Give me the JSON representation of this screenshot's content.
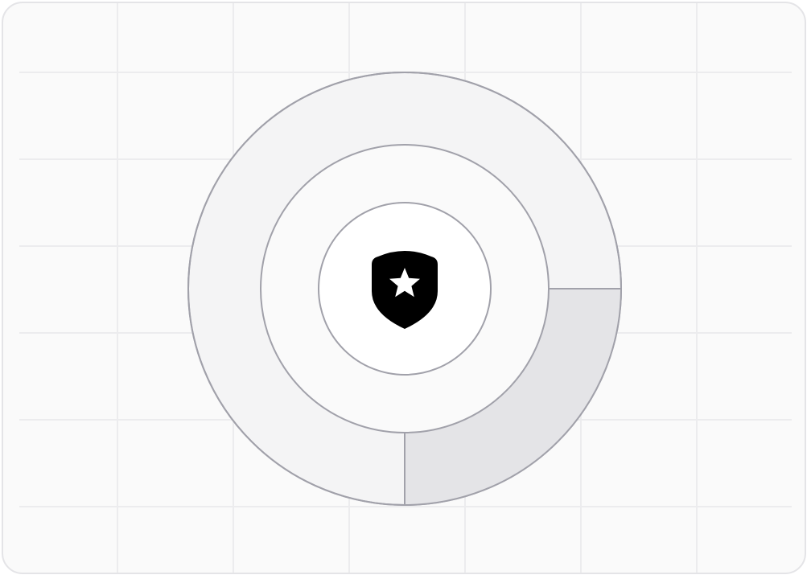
{
  "colors": {
    "card_background": "#fafafa",
    "card_border": "#e4e4e7",
    "grid_line": "#ececee",
    "ring_stroke": "#a1a1aa",
    "outer_ring_fill": "#f4f4f5",
    "highlight_segment_fill": "#e4e4e7",
    "middle_ring_fill": "#fafafa",
    "center_fill": "#ffffff",
    "shield": "#000000",
    "star": "#ffffff"
  },
  "icons": {
    "center": "shield-star-icon"
  },
  "highlight_segment": {
    "start_angle_deg": 0,
    "end_angle_deg": 90,
    "fraction_of_ring": 0.25
  }
}
